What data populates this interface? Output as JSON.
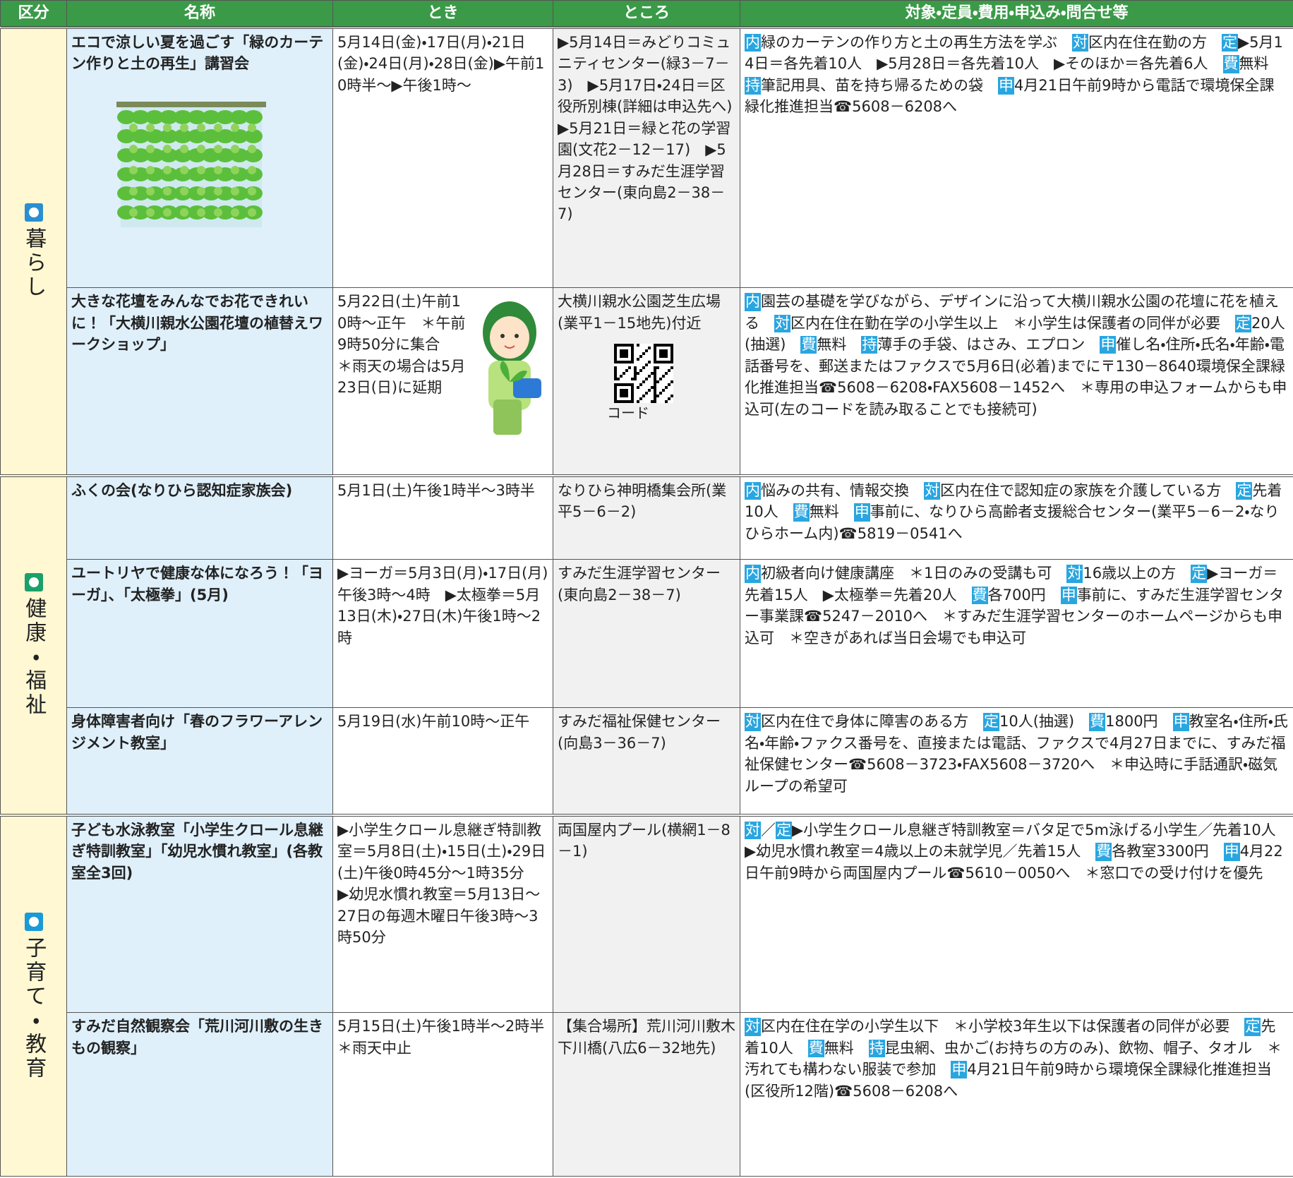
{
  "header": [
    "区分",
    "名称",
    "とき",
    "ところ",
    "対象・定員・費用・申込み・問合せ等"
  ],
  "groups": [
    {
      "category": "暮らし",
      "rows": [
        {
          "name": "エコで涼しい夏を過ごす「緑のカーテン作りと土の再生」講習会",
          "when": "5月14日(金)・17日(月)・21日(金)・24日(月)・28日(金)▶午前10時半～▶午後1時～",
          "where": "▶5月14日＝みどりコミュニティセンター(緑3－7－3)　▶5月17日・24日＝区役所別棟(詳細は申込先へ)　▶5月21日＝緑と花の学習園(文花2－12－17)　▶5月28日＝すみだ生涯学習センター(東向島2－38－7)",
          "details": [
            {
              "tag": "内"
            },
            {
              "text": "緑のカーテンの作り方と土の再生方法を学ぶ　"
            },
            {
              "tag": "対"
            },
            {
              "text": "区内在住在勤の方　"
            },
            {
              "tag": "定"
            },
            {
              "text": "▶5月14日＝各先着10人　▶5月28日＝各先着10人　▶そのほか＝各先着6人　"
            },
            {
              "tag": "費"
            },
            {
              "text": "無料　"
            },
            {
              "tag": "持"
            },
            {
              "text": "筆記用具、苗を持ち帰るための袋　"
            },
            {
              "tag": "申"
            },
            {
              "text": "4月21日午前9時から電話で環境保全課緑化推進担当☎5608－6208へ"
            }
          ]
        },
        {
          "name": "大きな花壇をみんなでお花できれいに！「大横川親水公園花壇の植替えワークショップ」",
          "when": "5月22日(土)午前10時～正午　＊午前9時50分に集合　＊雨天の場合は5月23日(日)に延期",
          "where": "大横川親水公園芝生広場(業平1－15地先)付近",
          "where_note": "コード",
          "details": [
            {
              "tag": "内"
            },
            {
              "text": "園芸の基礎を学びながら、デザインに沿って大横川親水公園の花壇に花を植える　"
            },
            {
              "tag": "対"
            },
            {
              "text": "区内在住在勤在学の小学生以上　＊小学生は保護者の同伴が必要　"
            },
            {
              "tag": "定"
            },
            {
              "text": "20人(抽選)　"
            },
            {
              "tag": "費"
            },
            {
              "text": "無料　"
            },
            {
              "tag": "持"
            },
            {
              "text": "薄手の手袋、はさみ、エプロン　"
            },
            {
              "tag": "申"
            },
            {
              "text": "催し名・住所・氏名・年齢・電話番号を、郵送またはファクスで5月6日(必着)までに〒130－8640環境保全課緑化推進担当☎5608－6208・FAX5608－1452へ　＊専用の申込フォームからも申込可(左のコードを読み取ることでも接続可)"
            }
          ]
        }
      ]
    },
    {
      "category": "健康・福祉",
      "rows": [
        {
          "name": "ふくの会(なりひら認知症家族会)",
          "when": "5月1日(土)午後1時半～3時半",
          "where": "なりひら神明橋集会所(業平5－6－2)",
          "details": [
            {
              "tag": "内"
            },
            {
              "text": "悩みの共有、情報交換　"
            },
            {
              "tag": "対"
            },
            {
              "text": "区内在住で認知症の家族を介護している方　"
            },
            {
              "tag": "定"
            },
            {
              "text": "先着10人　"
            },
            {
              "tag": "費"
            },
            {
              "text": "無料　"
            },
            {
              "tag": "申"
            },
            {
              "text": "事前に、なりひら高齢者支援総合センター(業平5－6－2・なりひらホーム内)☎5819－0541へ"
            }
          ]
        },
        {
          "name": "ユートリヤで健康な体になろう！「ヨーガ」、「太極拳」(5月)",
          "when": "▶ヨーガ＝5月3日(月)・17日(月)午後3時～4時　▶太極拳＝5月13日(木)・27日(木)午後1時～2時",
          "where": "すみだ生涯学習センター(東向島2－38－7)",
          "details": [
            {
              "tag": "内"
            },
            {
              "text": "初級者向け健康講座　＊1日のみの受講も可　"
            },
            {
              "tag": "対"
            },
            {
              "text": "16歳以上の方　"
            },
            {
              "tag": "定"
            },
            {
              "text": "▶ヨーガ＝先着15人　▶太極拳＝先着20人　"
            },
            {
              "tag": "費"
            },
            {
              "text": "各700円　"
            },
            {
              "tag": "申"
            },
            {
              "text": "事前に、すみだ生涯学習センター事業課☎5247－2010へ　＊すみだ生涯学習センターのホームページからも申込可　＊空きがあれば当日会場でも申込可"
            }
          ]
        },
        {
          "name": "身体障害者向け「春のフラワーアレンジメント教室」",
          "when": "5月19日(水)午前10時～正午",
          "where": "すみだ福祉保健センター(向島3－36－7)",
          "details": [
            {
              "tag": "対"
            },
            {
              "text": "区内在住で身体に障害のある方　"
            },
            {
              "tag": "定"
            },
            {
              "text": "10人(抽選)　"
            },
            {
              "tag": "費"
            },
            {
              "text": "1800円　"
            },
            {
              "tag": "申"
            },
            {
              "text": "教室名・住所・氏名・年齢・ファクス番号を、直接または電話、ファクスで4月27日までに、すみだ福祉保健センター☎5608－3723・FAX5608－3720へ　＊申込時に手話通訳・磁気ループの希望可"
            }
          ]
        }
      ]
    },
    {
      "category": "子育て・教育",
      "rows": [
        {
          "name": "子ども水泳教室「小学生クロール息継ぎ特訓教室」「幼児水慣れ教室」(各教室全3回)",
          "when": "▶小学生クロール息継ぎ特訓教室＝5月8日(土)・15日(土)・29日(土)午後0時45分～1時35分　▶幼児水慣れ教室＝5月13日～27日の毎週木曜日午後3時～3時50分",
          "where": "両国屋内プール(横網1－8－1)",
          "details": [
            {
              "tag": "対"
            },
            {
              "text": "／"
            },
            {
              "tag": "定"
            },
            {
              "text": "▶小学生クロール息継ぎ特訓教室＝バタ足で5m泳げる小学生／先着10人　▶幼児水慣れ教室＝4歳以上の未就学児／先着15人　"
            },
            {
              "tag": "費"
            },
            {
              "text": "各教室3300円　"
            },
            {
              "tag": "申"
            },
            {
              "text": "4月22日午前9時から両国屋内プール☎5610－0050へ　＊窓口での受け付けを優先"
            }
          ]
        },
        {
          "name": "すみだ自然観察会「荒川河川敷の生きもの観察」",
          "when": "5月15日(土)午後1時半～2時半　＊雨天中止",
          "where": "【集合場所】荒川河川敷木下川橋(八広6－32地先)",
          "details": [
            {
              "tag": "対"
            },
            {
              "text": "区内在住在学の小学生以下　＊小学校3年生以下は保護者の同伴が必要　"
            },
            {
              "tag": "定"
            },
            {
              "text": "先着10人　"
            },
            {
              "tag": "費"
            },
            {
              "text": "無料　"
            },
            {
              "tag": "持"
            },
            {
              "text": "昆虫網、虫かご(お持ちの方のみ)、飲物、帽子、タオル　＊汚れても構わない服装で参加　"
            },
            {
              "tag": "申"
            },
            {
              "text": "4月21日午前9時から環境保全課緑化推進担当(区役所12階)☎5608－6208へ"
            }
          ]
        }
      ]
    }
  ]
}
